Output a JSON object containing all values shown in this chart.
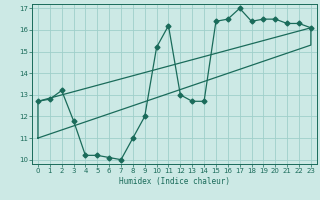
{
  "title": "",
  "xlabel": "Humidex (Indice chaleur)",
  "xlim": [
    -0.5,
    23.5
  ],
  "ylim": [
    9.8,
    17.2
  ],
  "yticks": [
    10,
    11,
    12,
    13,
    14,
    15,
    16,
    17
  ],
  "xticks": [
    0,
    1,
    2,
    3,
    4,
    5,
    6,
    7,
    8,
    9,
    10,
    11,
    12,
    13,
    14,
    15,
    16,
    17,
    18,
    19,
    20,
    21,
    22,
    23
  ],
  "bg_color": "#cce9e5",
  "grid_color": "#9fcfca",
  "line_color": "#1a6b5a",
  "line1_x": [
    0,
    1,
    2,
    3,
    4,
    5,
    6,
    7,
    8,
    9,
    10,
    11,
    12,
    13,
    14,
    15,
    16,
    17,
    18,
    19,
    20,
    21,
    22,
    23
  ],
  "line1_y": [
    12.7,
    12.8,
    13.2,
    11.8,
    10.2,
    10.2,
    10.1,
    10.0,
    11.0,
    12.0,
    15.2,
    16.2,
    13.0,
    12.7,
    12.7,
    16.4,
    16.5,
    17.0,
    16.4,
    16.5,
    16.5,
    16.3,
    16.3,
    16.1
  ],
  "line2_x": [
    0,
    23
  ],
  "line2_y": [
    11.0,
    15.3
  ],
  "line3_x": [
    0,
    23
  ],
  "line3_y": [
    12.7,
    16.1
  ],
  "rect_x": [
    0,
    23,
    23,
    0,
    0
  ],
  "rect_y": [
    11.0,
    15.3,
    16.1,
    12.7,
    11.0
  ],
  "marker": "D",
  "markersize": 2.5,
  "linewidth": 0.9
}
